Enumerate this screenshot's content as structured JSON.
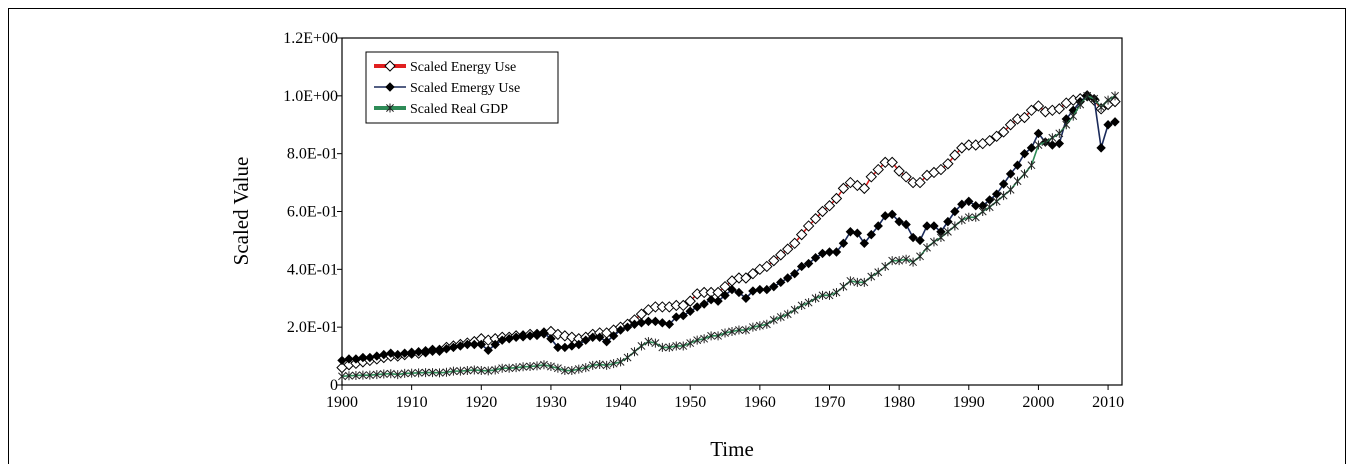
{
  "chart_data": {
    "type": "line",
    "x_label": "Time",
    "y_label": "Scaled Value",
    "legend": "upper left",
    "xlim": [
      1900,
      2012
    ],
    "xticks": [
      1900,
      1910,
      1920,
      1930,
      1940,
      1950,
      1960,
      1970,
      1980,
      1990,
      2000,
      2010
    ],
    "ylim": [
      0,
      1.2
    ],
    "yticks": [
      0,
      {
        "value": 0.2,
        "label": "2.0E-01"
      },
      {
        "value": 0.4,
        "label": "4.0E-01"
      },
      {
        "value": 0.6,
        "label": "6.0E-01"
      },
      {
        "value": 0.8,
        "label": "8.0E-01"
      },
      {
        "value": 1.0,
        "label": "1.0E+00"
      },
      {
        "value": 1.2,
        "label": "1.2E+00"
      }
    ],
    "x": [
      1900,
      1901,
      1902,
      1903,
      1904,
      1905,
      1906,
      1907,
      1908,
      1909,
      1910,
      1911,
      1912,
      1913,
      1914,
      1915,
      1916,
      1917,
      1918,
      1919,
      1920,
      1921,
      1922,
      1923,
      1924,
      1925,
      1926,
      1927,
      1928,
      1929,
      1930,
      1931,
      1932,
      1933,
      1934,
      1935,
      1936,
      1937,
      1938,
      1939,
      1940,
      1941,
      1942,
      1943,
      1944,
      1945,
      1946,
      1947,
      1948,
      1949,
      1950,
      1951,
      1952,
      1953,
      1954,
      1955,
      1956,
      1957,
      1958,
      1959,
      1960,
      1961,
      1962,
      1963,
      1964,
      1965,
      1966,
      1967,
      1968,
      1969,
      1970,
      1971,
      1972,
      1973,
      1974,
      1975,
      1976,
      1977,
      1978,
      1979,
      1980,
      1981,
      1982,
      1983,
      1984,
      1985,
      1986,
      1987,
      1988,
      1989,
      1990,
      1991,
      1992,
      1993,
      1994,
      1995,
      1996,
      1997,
      1998,
      1999,
      2000,
      2001,
      2002,
      2003,
      2004,
      2005,
      2006,
      2007,
      2008,
      2009,
      2010,
      2011
    ],
    "series": [
      {
        "name": "Scaled Energy Use",
        "color": "#e02020",
        "marker": "open-diamond",
        "values": [
          0.06,
          0.07,
          0.075,
          0.08,
          0.085,
          0.09,
          0.095,
          0.1,
          0.1,
          0.105,
          0.11,
          0.11,
          0.115,
          0.12,
          0.12,
          0.13,
          0.135,
          0.14,
          0.145,
          0.15,
          0.16,
          0.155,
          0.16,
          0.165,
          0.165,
          0.17,
          0.17,
          0.175,
          0.175,
          0.18,
          0.185,
          0.175,
          0.17,
          0.165,
          0.16,
          0.165,
          0.175,
          0.18,
          0.18,
          0.19,
          0.2,
          0.21,
          0.225,
          0.245,
          0.26,
          0.27,
          0.27,
          0.27,
          0.275,
          0.275,
          0.29,
          0.315,
          0.32,
          0.32,
          0.32,
          0.34,
          0.36,
          0.37,
          0.37,
          0.385,
          0.4,
          0.41,
          0.43,
          0.45,
          0.47,
          0.49,
          0.52,
          0.55,
          0.575,
          0.6,
          0.62,
          0.645,
          0.68,
          0.7,
          0.69,
          0.68,
          0.72,
          0.745,
          0.77,
          0.77,
          0.74,
          0.72,
          0.7,
          0.7,
          0.725,
          0.735,
          0.745,
          0.765,
          0.795,
          0.82,
          0.83,
          0.83,
          0.835,
          0.845,
          0.86,
          0.875,
          0.9,
          0.92,
          0.925,
          0.95,
          0.965,
          0.945,
          0.95,
          0.955,
          0.975,
          0.985,
          0.99,
          1.0,
          0.985,
          0.955,
          0.97,
          0.98
        ]
      },
      {
        "name": "Scaled Emergy Use",
        "color": "#1a2a5a",
        "marker": "filled-diamond",
        "values": [
          0.085,
          0.09,
          0.09,
          0.095,
          0.095,
          0.1,
          0.105,
          0.11,
          0.105,
          0.11,
          0.11,
          0.115,
          0.115,
          0.12,
          0.12,
          0.125,
          0.13,
          0.135,
          0.14,
          0.14,
          0.14,
          0.12,
          0.14,
          0.155,
          0.16,
          0.165,
          0.17,
          0.17,
          0.175,
          0.18,
          0.16,
          0.13,
          0.13,
          0.135,
          0.14,
          0.155,
          0.165,
          0.165,
          0.15,
          0.17,
          0.19,
          0.2,
          0.21,
          0.215,
          0.22,
          0.22,
          0.215,
          0.21,
          0.235,
          0.24,
          0.255,
          0.27,
          0.28,
          0.295,
          0.29,
          0.31,
          0.33,
          0.32,
          0.3,
          0.325,
          0.33,
          0.33,
          0.34,
          0.355,
          0.37,
          0.385,
          0.41,
          0.42,
          0.44,
          0.455,
          0.46,
          0.46,
          0.49,
          0.53,
          0.525,
          0.49,
          0.52,
          0.55,
          0.585,
          0.59,
          0.565,
          0.555,
          0.51,
          0.5,
          0.55,
          0.55,
          0.53,
          0.565,
          0.6,
          0.625,
          0.635,
          0.62,
          0.62,
          0.64,
          0.66,
          0.695,
          0.73,
          0.76,
          0.8,
          0.82,
          0.87,
          0.84,
          0.83,
          0.835,
          0.92,
          0.95,
          0.98,
          1.0,
          0.99,
          0.82,
          0.9,
          0.91
        ]
      },
      {
        "name": "Scaled Real GDP",
        "color": "#2e8b57",
        "marker": "star",
        "values": [
          0.03,
          0.032,
          0.033,
          0.034,
          0.034,
          0.036,
          0.038,
          0.039,
          0.036,
          0.04,
          0.041,
          0.042,
          0.043,
          0.043,
          0.042,
          0.044,
          0.048,
          0.048,
          0.05,
          0.052,
          0.05,
          0.049,
          0.052,
          0.058,
          0.058,
          0.06,
          0.063,
          0.064,
          0.066,
          0.07,
          0.064,
          0.058,
          0.05,
          0.05,
          0.055,
          0.06,
          0.068,
          0.071,
          0.068,
          0.074,
          0.08,
          0.095,
          0.115,
          0.135,
          0.15,
          0.145,
          0.13,
          0.13,
          0.135,
          0.135,
          0.145,
          0.155,
          0.16,
          0.17,
          0.17,
          0.18,
          0.185,
          0.19,
          0.19,
          0.2,
          0.205,
          0.21,
          0.225,
          0.235,
          0.245,
          0.26,
          0.275,
          0.285,
          0.3,
          0.31,
          0.31,
          0.32,
          0.34,
          0.36,
          0.355,
          0.355,
          0.375,
          0.39,
          0.41,
          0.43,
          0.43,
          0.435,
          0.425,
          0.445,
          0.475,
          0.495,
          0.51,
          0.53,
          0.55,
          0.57,
          0.58,
          0.58,
          0.6,
          0.615,
          0.635,
          0.655,
          0.675,
          0.705,
          0.73,
          0.76,
          0.83,
          0.84,
          0.855,
          0.87,
          0.9,
          0.93,
          0.97,
          1.0,
          0.99,
          0.96,
          0.985,
          1.0
        ]
      }
    ]
  }
}
